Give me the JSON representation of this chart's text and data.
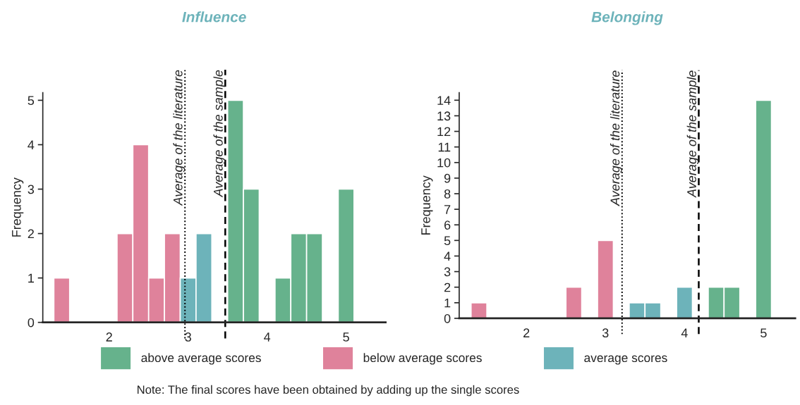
{
  "chart_data": [
    {
      "type": "histogram",
      "title": "Influence",
      "ylabel": "Frequency",
      "bins": [
        1.3,
        1.5,
        1.7,
        1.9,
        2.1,
        2.3,
        2.5,
        2.7,
        2.9,
        3.1,
        3.3,
        3.5,
        3.7,
        3.9,
        4.1,
        4.3,
        4.5,
        4.7,
        4.9,
        5.1
      ],
      "series": [
        {
          "name": "above average scores",
          "color": "#66b28c",
          "values": [
            null,
            null,
            null,
            null,
            null,
            null,
            null,
            null,
            null,
            null,
            null,
            5,
            3,
            null,
            1,
            2,
            2,
            null,
            3
          ]
        },
        {
          "name": "below average scores",
          "color": "#df829b",
          "values": [
            1,
            null,
            null,
            null,
            2,
            4,
            1,
            2,
            null,
            null,
            null,
            null,
            null,
            null,
            null,
            null,
            null,
            null,
            null
          ]
        },
        {
          "name": "average scores",
          "color": "#6db3ba",
          "values": [
            null,
            null,
            null,
            null,
            null,
            null,
            null,
            null,
            1,
            2,
            null,
            null,
            null,
            null,
            null,
            null,
            null,
            null,
            null
          ]
        }
      ],
      "xlim": [
        1.16,
        5.5
      ],
      "xticks": [
        2,
        3,
        4,
        5
      ],
      "ylim": [
        0,
        5.17
      ],
      "yticks": [
        0,
        1,
        2,
        3,
        4,
        5
      ],
      "ref_lines": [
        {
          "axis": "x",
          "value": 2.96,
          "label": "Average of the literature",
          "line_style": "dotted"
        },
        {
          "axis": "x",
          "value": 3.47,
          "label": "Average of the sample",
          "line_style": "dashed"
        }
      ],
      "legend": "bottom",
      "grid": false,
      "annotations": [
        "Note: The final scores have been obtained by adding up the single scores"
      ]
    },
    {
      "type": "histogram",
      "title": "Belonging",
      "ylabel": "Frequency",
      "bins": [
        1.3,
        1.5,
        1.7,
        1.9,
        2.1,
        2.3,
        2.5,
        2.7,
        2.9,
        3.1,
        3.3,
        3.5,
        3.7,
        3.9,
        4.1,
        4.3,
        4.5,
        4.7,
        4.9,
        5.1
      ],
      "series": [
        {
          "color": "#66b28c",
          "values": [
            null,
            null,
            null,
            null,
            null,
            null,
            null,
            null,
            null,
            null,
            null,
            null,
            null,
            null,
            null,
            2,
            2,
            null,
            14
          ]
        },
        {
          "color": "#df829b",
          "values": [
            1,
            null,
            null,
            null,
            null,
            null,
            2,
            null,
            5,
            null,
            null,
            null,
            null,
            null,
            null,
            null,
            null,
            null,
            null
          ]
        },
        {
          "color": "#6db3ba",
          "values": [
            null,
            null,
            null,
            null,
            null,
            null,
            null,
            null,
            null,
            null,
            1,
            1,
            null,
            2,
            null,
            null,
            null,
            null,
            null
          ]
        }
      ],
      "xlim": [
        1.15,
        5.4
      ],
      "xticks": [
        2,
        3,
        4,
        5
      ],
      "ylim": [
        0,
        14.48
      ],
      "yticks": [
        0,
        1,
        2,
        3,
        4,
        5,
        6,
        7,
        8,
        9,
        10,
        11,
        12,
        13,
        14
      ],
      "ref_lines": [
        {
          "axis": "x",
          "value": 3.21,
          "label": "Average of the literature",
          "line_style": "dotted"
        },
        {
          "axis": "x",
          "value": 4.18,
          "label": "Average of the sample",
          "line_style": "dashed"
        }
      ],
      "grid": false
    }
  ]
}
